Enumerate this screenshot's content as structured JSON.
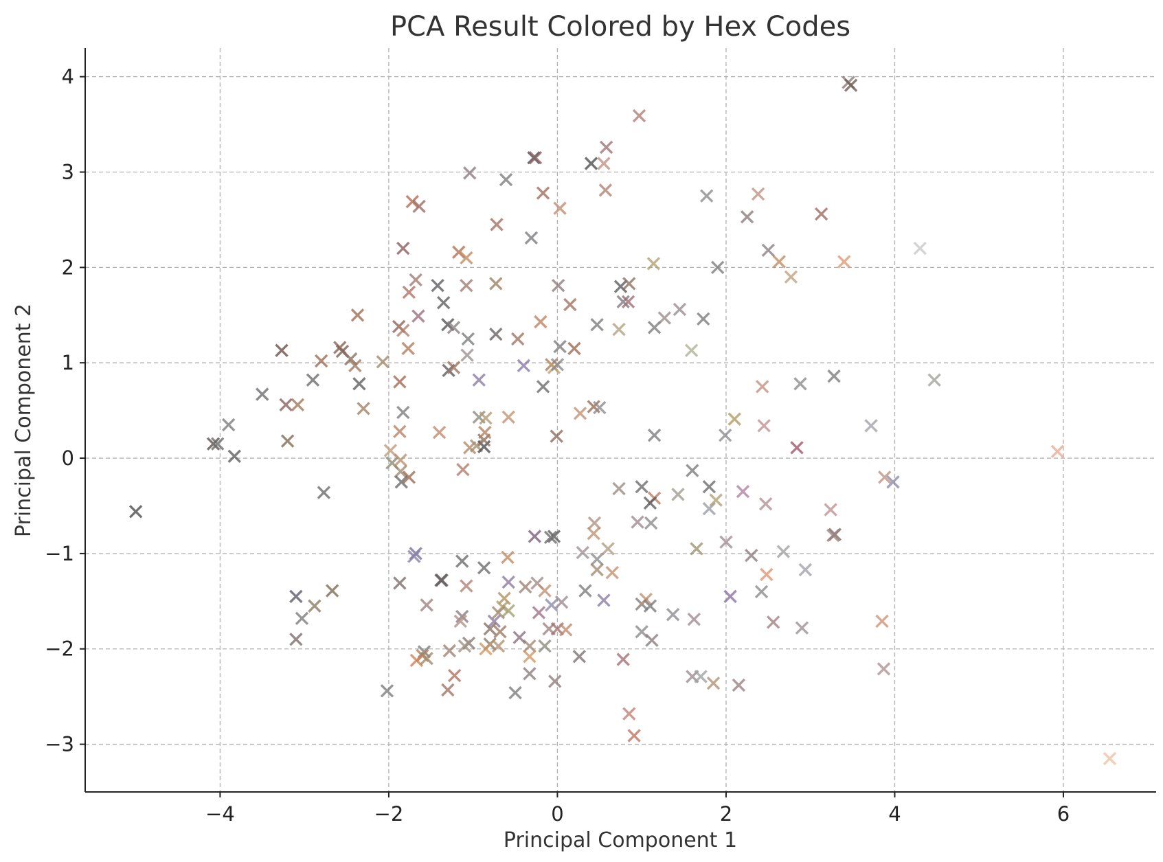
{
  "chart_data": {
    "type": "scatter",
    "title": "PCA Result Colored by Hex Codes",
    "xlabel": "Principal Component 1",
    "ylabel": "Principal Component 2",
    "xlim": [
      -5.6,
      7.1
    ],
    "ylim": [
      -3.5,
      4.3
    ],
    "xticks": [
      -4,
      -2,
      0,
      2,
      4,
      6
    ],
    "yticks": [
      -3,
      -2,
      -1,
      0,
      1,
      2,
      3,
      4
    ],
    "xtick_labels": [
      "−4",
      "−2",
      "0",
      "2",
      "4",
      "6"
    ],
    "ytick_labels": [
      "−3",
      "−2",
      "−1",
      "0",
      "1",
      "2",
      "3",
      "4"
    ],
    "grid": true,
    "marker": "x",
    "points": [
      {
        "x": -5.0,
        "y": -0.56,
        "c": "#4a4a4a"
      },
      {
        "x": -4.08,
        "y": 0.15,
        "c": "#5a4e48"
      },
      {
        "x": -4.03,
        "y": 0.15,
        "c": "#6a6a6a"
      },
      {
        "x": -3.9,
        "y": 0.35,
        "c": "#7a7a7a"
      },
      {
        "x": -3.83,
        "y": 0.02,
        "c": "#5c5c5c"
      },
      {
        "x": -3.5,
        "y": 0.67,
        "c": "#6b6b70"
      },
      {
        "x": -3.27,
        "y": 1.13,
        "c": "#6a4c44"
      },
      {
        "x": -3.22,
        "y": 0.56,
        "c": "#8a5e5e"
      },
      {
        "x": -3.08,
        "y": 0.56,
        "c": "#a07858"
      },
      {
        "x": -3.2,
        "y": 0.18,
        "c": "#7a6a50"
      },
      {
        "x": -2.9,
        "y": 0.82,
        "c": "#6a6a6a"
      },
      {
        "x": -2.8,
        "y": 1.02,
        "c": "#9a6a50"
      },
      {
        "x": -2.77,
        "y": -0.36,
        "c": "#6a6a6a"
      },
      {
        "x": -2.58,
        "y": 1.16,
        "c": "#8a6050"
      },
      {
        "x": -2.55,
        "y": 1.12,
        "c": "#7a6054"
      },
      {
        "x": -2.45,
        "y": 1.04,
        "c": "#8a7060"
      },
      {
        "x": -2.4,
        "y": 0.97,
        "c": "#9a7860"
      },
      {
        "x": -2.37,
        "y": 1.5,
        "c": "#a06850"
      },
      {
        "x": -2.35,
        "y": 0.78,
        "c": "#5c5c60"
      },
      {
        "x": -2.3,
        "y": 0.52,
        "c": "#a08060"
      },
      {
        "x": -2.07,
        "y": 1.01,
        "c": "#a08868"
      },
      {
        "x": -1.98,
        "y": 0.08,
        "c": "#c0987a"
      },
      {
        "x": -1.96,
        "y": -0.05,
        "c": "#8a8a70"
      },
      {
        "x": -1.88,
        "y": 1.38,
        "c": "#8a6058"
      },
      {
        "x": -1.87,
        "y": 0.28,
        "c": "#b88060"
      },
      {
        "x": -1.87,
        "y": 0.8,
        "c": "#a06a50"
      },
      {
        "x": -1.86,
        "y": -0.02,
        "c": "#b89070"
      },
      {
        "x": -1.86,
        "y": -0.14,
        "c": "#a08870"
      },
      {
        "x": -1.85,
        "y": -0.25,
        "c": "#6a6a6a"
      },
      {
        "x": -1.83,
        "y": 0.48,
        "c": "#7a7a7a"
      },
      {
        "x": -1.83,
        "y": 1.34,
        "c": "#b08070"
      },
      {
        "x": -1.83,
        "y": 2.2,
        "c": "#8a5a5a"
      },
      {
        "x": -1.77,
        "y": 1.15,
        "c": "#b07a58"
      },
      {
        "x": -1.76,
        "y": 1.74,
        "c": "#b07060"
      },
      {
        "x": -1.76,
        "y": -0.2,
        "c": "#9a6a50"
      },
      {
        "x": -1.72,
        "y": 2.69,
        "c": "#b06a50"
      },
      {
        "x": -1.68,
        "y": 1.87,
        "c": "#a07a70"
      },
      {
        "x": -1.65,
        "y": 1.49,
        "c": "#9a6a7a"
      },
      {
        "x": -1.64,
        "y": 2.64,
        "c": "#9a6a60"
      },
      {
        "x": -1.68,
        "y": -1.0,
        "c": "#7a70a0"
      },
      {
        "x": -1.7,
        "y": -1.03,
        "c": "#8a80a8"
      },
      {
        "x": -1.87,
        "y": -1.31,
        "c": "#7a6a6a"
      },
      {
        "x": -1.42,
        "y": 1.81,
        "c": "#5a5a60"
      },
      {
        "x": -1.35,
        "y": 1.63,
        "c": "#5c5c5c"
      },
      {
        "x": -1.4,
        "y": 0.27,
        "c": "#c08868"
      },
      {
        "x": -1.3,
        "y": 1.4,
        "c": "#505050"
      },
      {
        "x": -1.23,
        "y": 1.37,
        "c": "#8a8080"
      },
      {
        "x": -1.29,
        "y": 0.92,
        "c": "#5a5a5a"
      },
      {
        "x": -1.23,
        "y": 0.95,
        "c": "#a07060"
      },
      {
        "x": -1.17,
        "y": 2.16,
        "c": "#b07050"
      },
      {
        "x": -1.08,
        "y": 2.1,
        "c": "#c08a60"
      },
      {
        "x": -1.08,
        "y": 1.81,
        "c": "#a07a70"
      },
      {
        "x": -1.06,
        "y": 1.25,
        "c": "#7a7a7a"
      },
      {
        "x": -1.07,
        "y": 1.08,
        "c": "#9a9090"
      },
      {
        "x": -1.04,
        "y": 2.99,
        "c": "#8a7a80"
      },
      {
        "x": -1.04,
        "y": 0.11,
        "c": "#b08868"
      },
      {
        "x": -0.96,
        "y": 0.13,
        "c": "#a09070"
      },
      {
        "x": -0.93,
        "y": 0.82,
        "c": "#8a78a0"
      },
      {
        "x": -0.93,
        "y": 0.43,
        "c": "#8a8a7a"
      },
      {
        "x": -1.12,
        "y": -0.12,
        "c": "#b07868"
      },
      {
        "x": -0.87,
        "y": 0.12,
        "c": "#4c4c4c"
      },
      {
        "x": -0.87,
        "y": 0.19,
        "c": "#8a7060"
      },
      {
        "x": -0.85,
        "y": 0.42,
        "c": "#b09a70"
      },
      {
        "x": -0.86,
        "y": 0.27,
        "c": "#b08060"
      },
      {
        "x": -0.72,
        "y": 2.45,
        "c": "#a07060"
      },
      {
        "x": -0.73,
        "y": 1.83,
        "c": "#9a8060"
      },
      {
        "x": -0.73,
        "y": 1.3,
        "c": "#6a6060"
      },
      {
        "x": -0.61,
        "y": 2.92,
        "c": "#7a7a7a"
      },
      {
        "x": -0.58,
        "y": 0.43,
        "c": "#c09070"
      },
      {
        "x": -0.47,
        "y": 1.25,
        "c": "#a07060"
      },
      {
        "x": -0.4,
        "y": 0.97,
        "c": "#8a78a8"
      },
      {
        "x": -0.28,
        "y": 3.15,
        "c": "#4c4c4c"
      },
      {
        "x": -0.26,
        "y": 3.15,
        "c": "#8a6060"
      },
      {
        "x": -0.31,
        "y": 2.31,
        "c": "#7a7a80"
      },
      {
        "x": -0.2,
        "y": 1.43,
        "c": "#c08060"
      },
      {
        "x": -0.17,
        "y": 2.78,
        "c": "#a06a5a"
      },
      {
        "x": -0.17,
        "y": 0.75,
        "c": "#6a6a6a"
      },
      {
        "x": -0.07,
        "y": 0.98,
        "c": "#b07a58"
      },
      {
        "x": -0.04,
        "y": 0.95,
        "c": "#c0a070"
      },
      {
        "x": 0.0,
        "y": 0.98,
        "c": "#8a8a8a"
      },
      {
        "x": 0.03,
        "y": 2.62,
        "c": "#c08a70"
      },
      {
        "x": 0.01,
        "y": 1.81,
        "c": "#8a7a7a"
      },
      {
        "x": 0.03,
        "y": 1.17,
        "c": "#7a7a7a"
      },
      {
        "x": -0.01,
        "y": 0.23,
        "c": "#8a6a5a"
      },
      {
        "x": 0.15,
        "y": 1.61,
        "c": "#a07060"
      },
      {
        "x": 0.2,
        "y": 1.15,
        "c": "#9a6a50"
      },
      {
        "x": 0.27,
        "y": 0.47,
        "c": "#c09070"
      },
      {
        "x": 0.4,
        "y": 3.09,
        "c": "#4c4c4c"
      },
      {
        "x": 0.43,
        "y": 0.54,
        "c": "#9a6a50"
      },
      {
        "x": 0.47,
        "y": 1.4,
        "c": "#7a7a7a"
      },
      {
        "x": 0.5,
        "y": 0.53,
        "c": "#8a8a8a"
      },
      {
        "x": 0.55,
        "y": 3.09,
        "c": "#c09080"
      },
      {
        "x": 0.58,
        "y": 3.26,
        "c": "#a07070"
      },
      {
        "x": 0.57,
        "y": 2.81,
        "c": "#b08070"
      },
      {
        "x": 0.73,
        "y": 1.35,
        "c": "#b0a080"
      },
      {
        "x": 0.75,
        "y": 1.8,
        "c": "#5a5a5a"
      },
      {
        "x": 0.78,
        "y": 1.64,
        "c": "#7a7a80"
      },
      {
        "x": 0.84,
        "y": 1.64,
        "c": "#a06a70"
      },
      {
        "x": 0.85,
        "y": 1.83,
        "c": "#8a7060"
      },
      {
        "x": 0.97,
        "y": 3.59,
        "c": "#b07a70"
      },
      {
        "x": 1.14,
        "y": 2.04,
        "c": "#b0a070"
      },
      {
        "x": 1.15,
        "y": 1.37,
        "c": "#7a7a7a"
      },
      {
        "x": 1.27,
        "y": 1.47,
        "c": "#9a8a8a"
      },
      {
        "x": 1.45,
        "y": 1.56,
        "c": "#9a8a90"
      },
      {
        "x": 1.59,
        "y": 1.13,
        "c": "#b0b090"
      },
      {
        "x": 1.73,
        "y": 1.46,
        "c": "#7a7a7a"
      },
      {
        "x": 1.77,
        "y": 2.75,
        "c": "#8a8a8a"
      },
      {
        "x": 1.9,
        "y": 2.0,
        "c": "#7a7a7a"
      },
      {
        "x": 1.99,
        "y": 0.24,
        "c": "#8a8a90"
      },
      {
        "x": 2.1,
        "y": 0.41,
        "c": "#b09a60"
      },
      {
        "x": 2.25,
        "y": 2.53,
        "c": "#8a7a7a"
      },
      {
        "x": 2.38,
        "y": 2.77,
        "c": "#c09080"
      },
      {
        "x": 2.43,
        "y": 0.75,
        "c": "#c09080"
      },
      {
        "x": 2.45,
        "y": 0.34,
        "c": "#c09090"
      },
      {
        "x": 2.5,
        "y": 2.18,
        "c": "#8a8080"
      },
      {
        "x": 2.63,
        "y": 2.06,
        "c": "#c08a60"
      },
      {
        "x": 2.77,
        "y": 1.9,
        "c": "#c0a080"
      },
      {
        "x": 2.84,
        "y": 0.11,
        "c": "#a05068"
      },
      {
        "x": 2.88,
        "y": 0.78,
        "c": "#8a8a8a"
      },
      {
        "x": 3.13,
        "y": 2.56,
        "c": "#9a6a60"
      },
      {
        "x": 3.28,
        "y": 0.86,
        "c": "#7a7a7a"
      },
      {
        "x": 3.4,
        "y": 2.06,
        "c": "#e09870"
      },
      {
        "x": 3.45,
        "y": 3.94,
        "c": "#8a7a7a"
      },
      {
        "x": 3.48,
        "y": 3.91,
        "c": "#6a5a50"
      },
      {
        "x": 3.72,
        "y": 0.34,
        "c": "#a0a0a8"
      },
      {
        "x": 4.3,
        "y": 2.2,
        "c": "#c8c8c8"
      },
      {
        "x": 4.47,
        "y": 0.82,
        "c": "#a0a09a"
      },
      {
        "x": 5.93,
        "y": 0.07,
        "c": "#e8a890"
      },
      {
        "x": 1.15,
        "y": 0.24,
        "c": "#7a7a80"
      },
      {
        "x": 1.6,
        "y": -0.13,
        "c": "#7a7a7a"
      },
      {
        "x": 1.8,
        "y": -0.3,
        "c": "#6a6a6a"
      },
      {
        "x": 1.8,
        "y": -0.53,
        "c": "#9a9aa8"
      },
      {
        "x": 1.88,
        "y": -0.44,
        "c": "#b0a070"
      },
      {
        "x": 2.2,
        "y": -0.35,
        "c": "#b080a0"
      },
      {
        "x": 2.47,
        "y": -0.48,
        "c": "#b09090"
      },
      {
        "x": 1.43,
        "y": -0.38,
        "c": "#a09a90"
      },
      {
        "x": 1.15,
        "y": -0.42,
        "c": "#c07860"
      },
      {
        "x": 1.1,
        "y": -0.47,
        "c": "#5a5a5a"
      },
      {
        "x": 1.0,
        "y": -0.3,
        "c": "#6a6a6a"
      },
      {
        "x": 0.73,
        "y": -0.32,
        "c": "#9a8a80"
      },
      {
        "x": 0.95,
        "y": -0.67,
        "c": "#9a8a90"
      },
      {
        "x": 1.11,
        "y": -0.68,
        "c": "#8a8a8a"
      },
      {
        "x": 3.88,
        "y": -0.2,
        "c": "#c09080"
      },
      {
        "x": 3.98,
        "y": -0.25,
        "c": "#8a8aa8"
      },
      {
        "x": 3.24,
        "y": -0.54,
        "c": "#c09090"
      },
      {
        "x": 3.29,
        "y": -0.8,
        "c": "#7a6a60"
      },
      {
        "x": 3.27,
        "y": -0.81,
        "c": "#9a8080"
      },
      {
        "x": 2.0,
        "y": -0.88,
        "c": "#a08a90"
      },
      {
        "x": 1.65,
        "y": -0.95,
        "c": "#9a9070"
      },
      {
        "x": 2.3,
        "y": -1.02,
        "c": "#8a7a7a"
      },
      {
        "x": 2.68,
        "y": -0.98,
        "c": "#a0a0a0"
      },
      {
        "x": 2.94,
        "y": -1.17,
        "c": "#a0a0a8"
      },
      {
        "x": 2.48,
        "y": -1.22,
        "c": "#e09070"
      },
      {
        "x": 2.42,
        "y": -1.4,
        "c": "#8a8a8a"
      },
      {
        "x": 2.05,
        "y": -1.45,
        "c": "#8a70a0"
      },
      {
        "x": 2.56,
        "y": -1.72,
        "c": "#a08080"
      },
      {
        "x": 2.9,
        "y": -1.78,
        "c": "#9a9090"
      },
      {
        "x": 3.85,
        "y": -1.71,
        "c": "#d09070"
      },
      {
        "x": 3.87,
        "y": -2.21,
        "c": "#b09090"
      },
      {
        "x": 6.55,
        "y": -3.15,
        "c": "#f0c0a0"
      },
      {
        "x": 0.44,
        "y": -0.68,
        "c": "#b09080"
      },
      {
        "x": 0.43,
        "y": -0.79,
        "c": "#c09070"
      },
      {
        "x": 0.3,
        "y": -0.99,
        "c": "#a09098"
      },
      {
        "x": 0.47,
        "y": -1.06,
        "c": "#8a8a8a"
      },
      {
        "x": 0.47,
        "y": -1.17,
        "c": "#a08a70"
      },
      {
        "x": 0.6,
        "y": -0.95,
        "c": "#b09a80"
      },
      {
        "x": 0.65,
        "y": -1.2,
        "c": "#c09070"
      },
      {
        "x": 0.33,
        "y": -1.39,
        "c": "#7a7a7a"
      },
      {
        "x": 0.55,
        "y": -1.49,
        "c": "#8a78a0"
      },
      {
        "x": 1.0,
        "y": -1.53,
        "c": "#7a7a7a"
      },
      {
        "x": 1.05,
        "y": -1.48,
        "c": "#c09070"
      },
      {
        "x": 1.1,
        "y": -1.55,
        "c": "#7a7a7a"
      },
      {
        "x": 1.37,
        "y": -1.64,
        "c": "#8a8a90"
      },
      {
        "x": 1.62,
        "y": -1.69,
        "c": "#a08890"
      },
      {
        "x": 1.0,
        "y": -1.82,
        "c": "#8a8a8a"
      },
      {
        "x": 1.12,
        "y": -1.91,
        "c": "#8a7a7a"
      },
      {
        "x": 0.78,
        "y": -2.11,
        "c": "#a07070"
      },
      {
        "x": 1.6,
        "y": -2.29,
        "c": "#9a8a90"
      },
      {
        "x": 1.7,
        "y": -2.29,
        "c": "#a0a0a0"
      },
      {
        "x": 1.85,
        "y": -2.36,
        "c": "#b09070"
      },
      {
        "x": 2.15,
        "y": -2.38,
        "c": "#9a8080"
      },
      {
        "x": 0.85,
        "y": -2.68,
        "c": "#c08070"
      },
      {
        "x": 0.91,
        "y": -2.91,
        "c": "#c07060"
      },
      {
        "x": 0.26,
        "y": -2.08,
        "c": "#7a7070"
      },
      {
        "x": -0.04,
        "y": -0.82,
        "c": "#5a5a5a"
      },
      {
        "x": -0.08,
        "y": -0.83,
        "c": "#6a6a6a"
      },
      {
        "x": -0.27,
        "y": -0.82,
        "c": "#7a5a7a"
      },
      {
        "x": -0.59,
        "y": -1.04,
        "c": "#c08860"
      },
      {
        "x": -0.58,
        "y": -1.3,
        "c": "#8a78a0"
      },
      {
        "x": -0.38,
        "y": -1.35,
        "c": "#a08070"
      },
      {
        "x": -0.24,
        "y": -1.31,
        "c": "#a08888"
      },
      {
        "x": -0.15,
        "y": -1.39,
        "c": "#c09070"
      },
      {
        "x": -0.07,
        "y": -1.54,
        "c": "#8a8aa8"
      },
      {
        "x": 0.05,
        "y": -1.51,
        "c": "#9a8a90"
      },
      {
        "x": -0.22,
        "y": -1.62,
        "c": "#a07088"
      },
      {
        "x": -0.1,
        "y": -1.79,
        "c": "#a08080"
      },
      {
        "x": 0.0,
        "y": -1.79,
        "c": "#a07070"
      },
      {
        "x": 0.1,
        "y": -1.8,
        "c": "#c08868"
      },
      {
        "x": -0.15,
        "y": -1.97,
        "c": "#8a8a7a"
      },
      {
        "x": -0.03,
        "y": -2.34,
        "c": "#8a7a7a"
      },
      {
        "x": -0.33,
        "y": -1.97,
        "c": "#a08a70"
      },
      {
        "x": -0.33,
        "y": -2.08,
        "c": "#d09860"
      },
      {
        "x": -0.33,
        "y": -2.26,
        "c": "#8a7a7a"
      },
      {
        "x": -0.45,
        "y": -1.88,
        "c": "#8a7080"
      },
      {
        "x": -0.5,
        "y": -2.46,
        "c": "#7a7a7a"
      },
      {
        "x": -0.58,
        "y": -1.6,
        "c": "#a0a070"
      },
      {
        "x": -0.63,
        "y": -1.47,
        "c": "#b09060"
      },
      {
        "x": -0.65,
        "y": -1.56,
        "c": "#b0a070"
      },
      {
        "x": -0.7,
        "y": -1.62,
        "c": "#a08a70"
      },
      {
        "x": -0.75,
        "y": -1.71,
        "c": "#8a78a0"
      },
      {
        "x": -0.8,
        "y": -1.79,
        "c": "#8a7060"
      },
      {
        "x": -0.68,
        "y": -1.82,
        "c": "#9a7a60"
      },
      {
        "x": -0.8,
        "y": -1.95,
        "c": "#8a7a6a"
      },
      {
        "x": -0.7,
        "y": -1.97,
        "c": "#b09070"
      },
      {
        "x": -0.85,
        "y": -2.0,
        "c": "#d09860"
      },
      {
        "x": -0.87,
        "y": -1.15,
        "c": "#6a6a6a"
      },
      {
        "x": -1.08,
        "y": -1.34,
        "c": "#b08070"
      },
      {
        "x": -1.13,
        "y": -1.08,
        "c": "#6a6a6a"
      },
      {
        "x": -1.38,
        "y": -1.28,
        "c": "#4c4c4c"
      },
      {
        "x": -1.37,
        "y": -1.28,
        "c": "#6a6060"
      },
      {
        "x": -1.13,
        "y": -1.66,
        "c": "#8a7a80"
      },
      {
        "x": -1.15,
        "y": -1.71,
        "c": "#b09080"
      },
      {
        "x": -1.05,
        "y": -1.94,
        "c": "#8a7a70"
      },
      {
        "x": -1.1,
        "y": -1.97,
        "c": "#a09080"
      },
      {
        "x": -1.28,
        "y": -2.02,
        "c": "#a08070"
      },
      {
        "x": -1.22,
        "y": -2.28,
        "c": "#b07060"
      },
      {
        "x": -1.3,
        "y": -2.43,
        "c": "#a07060"
      },
      {
        "x": -1.55,
        "y": -1.54,
        "c": "#a08080"
      },
      {
        "x": -1.58,
        "y": -2.03,
        "c": "#7a7a7a"
      },
      {
        "x": -1.6,
        "y": -2.07,
        "c": "#b08060"
      },
      {
        "x": -1.67,
        "y": -2.12,
        "c": "#d08050"
      },
      {
        "x": -1.55,
        "y": -2.1,
        "c": "#a08868"
      },
      {
        "x": -2.02,
        "y": -2.44,
        "c": "#7a7a7a"
      },
      {
        "x": -2.67,
        "y": -1.39,
        "c": "#7a6a50"
      },
      {
        "x": -2.88,
        "y": -1.55,
        "c": "#8a7a60"
      },
      {
        "x": -3.03,
        "y": -1.68,
        "c": "#7a7a7a"
      },
      {
        "x": -3.1,
        "y": -1.45,
        "c": "#5a5a6a"
      },
      {
        "x": -3.1,
        "y": -1.9,
        "c": "#7a6a6a"
      }
    ]
  }
}
